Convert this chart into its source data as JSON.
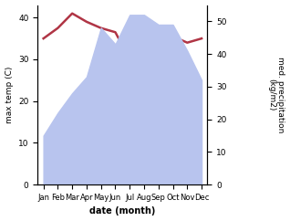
{
  "months": [
    "Jan",
    "Feb",
    "Mar",
    "Apr",
    "May",
    "Jun",
    "Jul",
    "Aug",
    "Sep",
    "Oct",
    "Nov",
    "Dec"
  ],
  "temperature": [
    35,
    37.5,
    41,
    39,
    37.5,
    36.5,
    30,
    30,
    35,
    35.5,
    34,
    35
  ],
  "precipitation": [
    15,
    22,
    28,
    33,
    48,
    43,
    52,
    52,
    49,
    49,
    41,
    32
  ],
  "temp_color": "#b03545",
  "precip_color": "#b8c4ee",
  "ylabel_left": "max temp (C)",
  "ylabel_right": "med. precipitation\n(kg/m2)",
  "xlabel": "date (month)",
  "ylim_left": [
    0,
    43
  ],
  "ylim_right": [
    0,
    55
  ],
  "yticks_left": [
    0,
    10,
    20,
    30,
    40
  ],
  "yticks_right": [
    0,
    10,
    20,
    30,
    40,
    50
  ],
  "background_color": "#ffffff"
}
